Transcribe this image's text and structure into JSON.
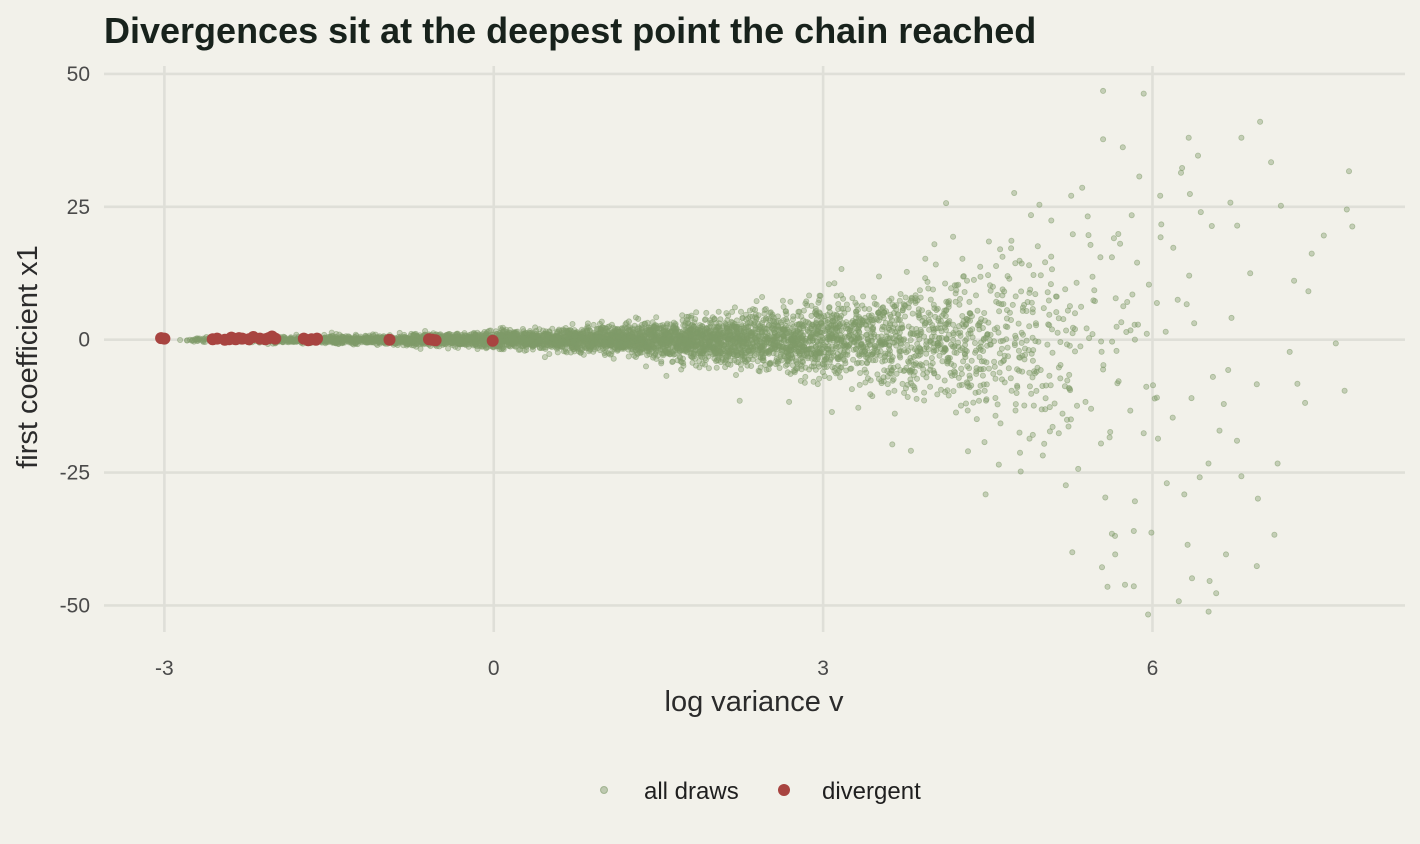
{
  "chart_data": {
    "type": "scatter",
    "title": "Divergences sit at the deepest point the chain reached",
    "xlabel": "log variance v",
    "ylabel": "first coefficient x1",
    "xlim": [
      -3.55,
      8.3
    ],
    "ylim": [
      -55,
      51.5
    ],
    "xticks": [
      -3,
      0,
      3,
      6
    ],
    "yticks": [
      50,
      25,
      0,
      -25,
      -50
    ],
    "xtick_labels": [
      "-3",
      "0",
      "3",
      "6"
    ],
    "ytick_labels": [
      "50",
      "25",
      "0",
      "-25",
      "-50"
    ],
    "grid": true,
    "legend_position": "bottom",
    "colors": {
      "all_draws": "#7f9a6a",
      "divergent": "#a84440",
      "background": "#f2f1ea"
    },
    "series": [
      {
        "name": "all draws",
        "description_of_spread": "dense funnel: x1 ~ Normal(0, exp(v/2)), v from about -3 to 7.8",
        "points": [
          [
            5.92,
            46.3
          ],
          [
            6.98,
            41.0
          ],
          [
            7.08,
            33.4
          ],
          [
            6.81,
            38.0
          ],
          [
            6.33,
            38.0
          ],
          [
            5.55,
            37.7
          ],
          [
            5.73,
            36.2
          ],
          [
            7.79,
            31.7
          ],
          [
            7.77,
            24.5
          ],
          [
            5.88,
            30.7
          ],
          [
            6.27,
            32.3
          ],
          [
            6.26,
            31.4
          ],
          [
            5.36,
            28.6
          ],
          [
            4.74,
            27.6
          ],
          [
            5.26,
            27.1
          ],
          [
            6.07,
            27.1
          ],
          [
            6.71,
            25.8
          ],
          [
            7.17,
            25.2
          ],
          [
            4.12,
            25.7
          ],
          [
            4.97,
            25.4
          ],
          [
            5.41,
            23.2
          ],
          [
            7.56,
            19.6
          ],
          [
            7.82,
            21.3
          ],
          [
            7.45,
            16.2
          ],
          [
            7.29,
            11.1
          ],
          [
            7.42,
            9.1
          ],
          [
            7.67,
            -0.7
          ],
          [
            7.75,
            -9.6
          ],
          [
            7.25,
            -2.3
          ],
          [
            7.32,
            -8.3
          ],
          [
            7.39,
            -11.9
          ],
          [
            6.96,
            -29.9
          ],
          [
            7.11,
            -36.7
          ],
          [
            6.95,
            -42.6
          ],
          [
            6.67,
            -40.4
          ],
          [
            6.52,
            -45.4
          ],
          [
            6.58,
            -47.7
          ],
          [
            6.24,
            -49.2
          ],
          [
            5.96,
            -51.7
          ],
          [
            6.36,
            -44.9
          ],
          [
            5.83,
            -46.4
          ],
          [
            5.59,
            -46.5
          ],
          [
            5.75,
            -46.1
          ],
          [
            5.54,
            -42.8
          ],
          [
            5.66,
            -40.4
          ],
          [
            5.27,
            -40.0
          ],
          [
            5.63,
            -36.5
          ],
          [
            5.83,
            -36.0
          ],
          [
            5.99,
            -36.3
          ],
          [
            6.32,
            -38.6
          ],
          [
            5.84,
            -30.4
          ],
          [
            5.57,
            -29.7
          ],
          [
            4.48,
            -29.1
          ],
          [
            4.8,
            -24.8
          ],
          [
            4.6,
            -23.5
          ],
          [
            4.32,
            -21.0
          ],
          [
            3.63,
            -19.7
          ],
          [
            3.8,
            -20.9
          ],
          [
            3.08,
            -13.6
          ],
          [
            2.69,
            -11.7
          ],
          [
            2.24,
            -11.5
          ],
          [
            5.21,
            -27.4
          ],
          [
            6.29,
            -29.1
          ],
          [
            6.43,
            -25.9
          ],
          [
            6.13,
            -27.0
          ],
          [
            7.14,
            -23.3
          ],
          [
            6.81,
            -25.7
          ],
          [
            6.51,
            -23.3
          ],
          [
            6.77,
            -19.0
          ],
          [
            5.92,
            -17.6
          ],
          [
            6.05,
            -18.6
          ],
          [
            6.61,
            -17.1
          ],
          [
            6.12,
            1.5
          ],
          [
            6.38,
            3.1
          ],
          [
            6.72,
            4.1
          ],
          [
            6.89,
            12.5
          ],
          [
            6.54,
            21.4
          ],
          [
            6.19,
            17.3
          ],
          [
            6.08,
            21.7
          ],
          [
            5.63,
            15.5
          ],
          [
            5.86,
            14.5
          ],
          [
            5.47,
            9.3
          ],
          [
            5.77,
            7.1
          ],
          [
            6.04,
            6.9
          ],
          [
            6.23,
            7.5
          ],
          [
            6.55,
            -7.0
          ],
          [
            6.69,
            -5.7
          ],
          [
            6.95,
            -8.4
          ],
          [
            6.65,
            -12.1
          ],
          [
            6.04,
            -10.9
          ],
          [
            5.68,
            -8.2
          ],
          [
            5.55,
            -5.6
          ],
          [
            5.39,
            -11.7
          ],
          [
            5.18,
            -13.9
          ],
          [
            5.09,
            -16.4
          ],
          [
            4.88,
            -18.6
          ],
          [
            4.57,
            -14.3
          ],
          [
            4.42,
            -11.5
          ],
          [
            4.21,
            -13.7
          ],
          [
            4.04,
            -10.3
          ]
        ]
      },
      {
        "name": "divergent",
        "points": [
          [
            -3.03,
            0.3
          ],
          [
            -3.0,
            0.2
          ],
          [
            -2.56,
            0.1
          ],
          [
            -2.52,
            0.2
          ],
          [
            -2.45,
            0.0
          ],
          [
            -2.41,
            0.1
          ],
          [
            -2.39,
            0.4
          ],
          [
            -2.37,
            0.2
          ],
          [
            -2.35,
            0.1
          ],
          [
            -2.32,
            0.3
          ],
          [
            -2.29,
            0.2
          ],
          [
            -2.23,
            0.1
          ],
          [
            -2.19,
            0.5
          ],
          [
            -2.13,
            0.2
          ],
          [
            -2.08,
            0.1
          ],
          [
            -2.05,
            0.3
          ],
          [
            -2.02,
            0.6
          ],
          [
            -1.99,
            0.2
          ],
          [
            -1.73,
            0.2
          ],
          [
            -1.69,
            -0.1
          ],
          [
            -1.66,
            0.1
          ],
          [
            -1.62,
            0.0
          ],
          [
            -1.61,
            0.2
          ],
          [
            -0.95,
            0.0
          ],
          [
            -0.59,
            0.1
          ],
          [
            -0.56,
            0.0
          ],
          [
            -0.53,
            -0.1
          ],
          [
            -0.01,
            -0.2
          ]
        ]
      }
    ]
  }
}
